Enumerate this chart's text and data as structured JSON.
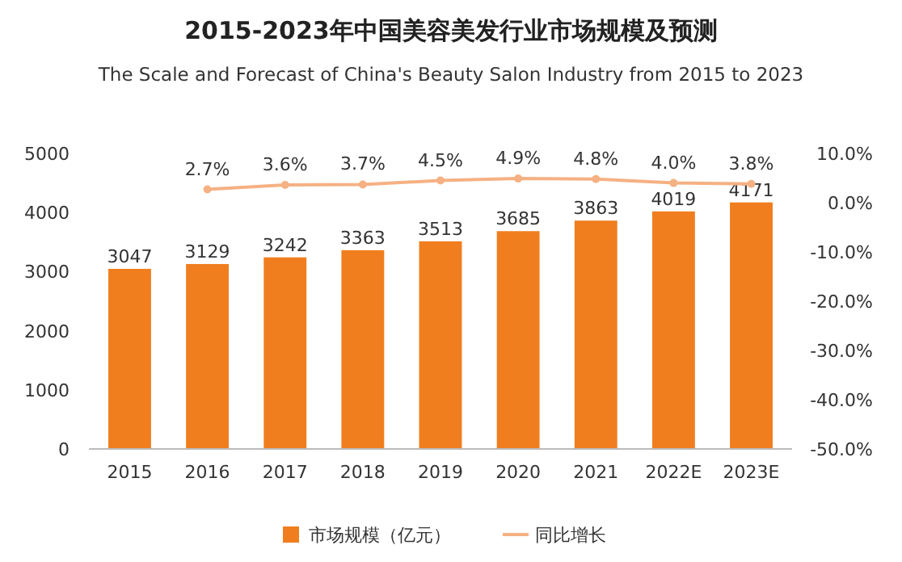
{
  "chart_data": {
    "type": "bar",
    "title": "2015-2023年中国美容美发行业市场规模及预测",
    "subtitle": "The Scale and Forecast of China's Beauty Salon Industry from 2015 to 2023",
    "categories": [
      "2015",
      "2016",
      "2017",
      "2018",
      "2019",
      "2020",
      "2021",
      "2022E",
      "2023E"
    ],
    "series": [
      {
        "name": "市场规模（亿元）",
        "color": "#f07e1e",
        "values": [
          3047,
          3129,
          3242,
          3363,
          3513,
          3685,
          3863,
          4019,
          4171
        ],
        "value_labels": [
          "3047",
          "3129",
          "3242",
          "3363",
          "3513",
          "3685",
          "3863",
          "4019",
          "4171"
        ]
      },
      {
        "name": "同比增长",
        "type": "line",
        "axis": "y2",
        "color": "#f5b183",
        "values": [
          null,
          2.7,
          3.6,
          3.7,
          4.5,
          4.9,
          4.8,
          4.0,
          3.8
        ],
        "value_labels": [
          null,
          "2.7%",
          "3.6%",
          "3.7%",
          "4.5%",
          "4.9%",
          "4.8%",
          "4.0%",
          "3.8%"
        ]
      }
    ],
    "ylim": [
      0,
      5000
    ],
    "yticks": [
      0,
      1000,
      2000,
      3000,
      4000,
      5000
    ],
    "y2lim": [
      -50,
      10
    ],
    "y2ticks": [
      {
        "value": -50,
        "label": "-50.0%"
      },
      {
        "value": -40,
        "label": "-40.0%"
      },
      {
        "value": -30,
        "label": "-30.0%"
      },
      {
        "value": -20,
        "label": "-20.0%"
      },
      {
        "value": -10,
        "label": "-10.0%"
      },
      {
        "value": 0,
        "label": "0.0%"
      },
      {
        "value": 10,
        "label": "10.0%"
      }
    ],
    "marker": "circle",
    "legend": "bottom"
  }
}
